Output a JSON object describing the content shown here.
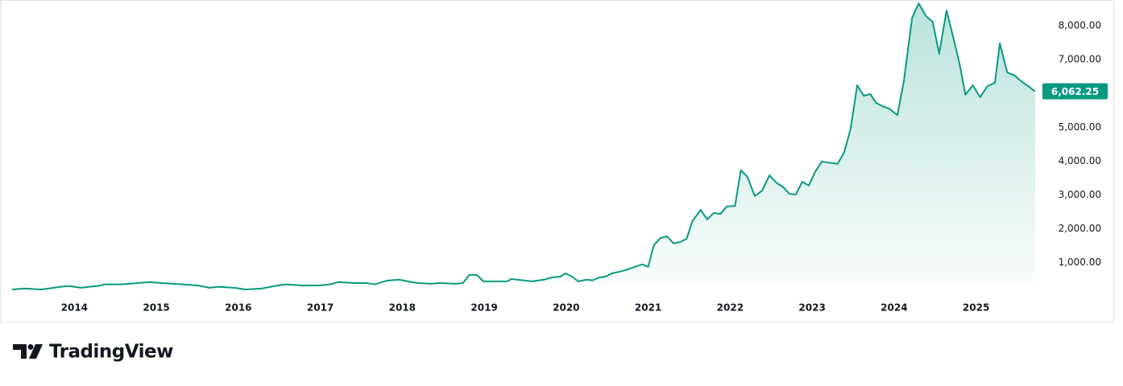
{
  "chart_data": {
    "type": "area",
    "color": "#089981",
    "x": [
      2013.24,
      2013.39,
      2013.59,
      2013.69,
      2013.83,
      2013.93,
      2014.0,
      2014.08,
      2014.18,
      2014.28,
      2014.37,
      2014.57,
      2014.67,
      2014.77,
      2014.91,
      2015.06,
      2015.21,
      2015.31,
      2015.5,
      2015.65,
      2015.75,
      2015.95,
      2016.09,
      2016.29,
      2016.44,
      2016.58,
      2016.78,
      2016.98,
      2017.12,
      2017.22,
      2017.42,
      2017.57,
      2017.66,
      2017.81,
      2017.96,
      2018.11,
      2018.2,
      2018.35,
      2018.45,
      2018.65,
      2018.74,
      2018.82,
      2018.91,
      2018.99,
      2019.14,
      2019.28,
      2019.33,
      2019.48,
      2019.58,
      2019.73,
      2019.83,
      2019.93,
      2019.99,
      2020.07,
      2020.15,
      2020.25,
      2020.32,
      2020.41,
      2020.48,
      2020.56,
      2020.66,
      2020.76,
      2020.86,
      2020.93,
      2021.0,
      2021.07,
      2021.15,
      2021.23,
      2021.31,
      2021.39,
      2021.47,
      2021.54,
      2021.64,
      2021.72,
      2021.8,
      2021.88,
      2021.96,
      2022.06,
      2022.13,
      2022.21,
      2022.3,
      2022.39,
      2022.48,
      2022.57,
      2022.64,
      2022.72,
      2022.8,
      2022.88,
      2022.96,
      2023.04,
      2023.12,
      2023.19,
      2023.31,
      2023.39,
      2023.47,
      2023.55,
      2023.63,
      2023.71,
      2023.78,
      2023.86,
      2023.94,
      2024.04,
      2024.12,
      2024.22,
      2024.3,
      2024.39,
      2024.47,
      2024.55,
      2024.64,
      2024.72,
      2024.8,
      2024.87,
      2024.96,
      2025.05,
      2025.14,
      2025.23,
      2025.29,
      2025.38,
      2025.47,
      2025.55,
      2025.65,
      2025.72
    ],
    "values": [
      210,
      240,
      210,
      240,
      290,
      310,
      290,
      260,
      290,
      310,
      360,
      360,
      380,
      400,
      430,
      400,
      380,
      360,
      330,
      260,
      290,
      260,
      210,
      240,
      310,
      360,
      330,
      330,
      360,
      430,
      400,
      400,
      360,
      470,
      500,
      430,
      400,
      380,
      400,
      380,
      400,
      640,
      640,
      450,
      450,
      450,
      520,
      480,
      450,
      500,
      570,
      590,
      690,
      590,
      450,
      500,
      480,
      570,
      590,
      690,
      740,
      810,
      900,
      950,
      880,
      1520,
      1730,
      1780,
      1570,
      1610,
      1710,
      2230,
      2560,
      2280,
      2470,
      2440,
      2660,
      2680,
      3730,
      3540,
      2970,
      3130,
      3580,
      3350,
      3250,
      3040,
      3010,
      3390,
      3280,
      3700,
      3990,
      3960,
      3920,
      4250,
      4960,
      6240,
      5930,
      5980,
      5720,
      5620,
      5550,
      5360,
      6380,
      8230,
      8660,
      8280,
      8120,
      7170,
      8450,
      7670,
      6860,
      5960,
      6240,
      5890,
      6220,
      6310,
      7480,
      6620,
      6530,
      6360,
      6190,
      6062.25
    ],
    "last_value_label": "6,062.25",
    "xlim": [
      2013.24,
      2025.8
    ],
    "xticks": [
      2014,
      2015,
      2016,
      2017,
      2018,
      2019,
      2020,
      2021,
      2022,
      2023,
      2024,
      2025
    ],
    "ylim": [
      400,
      8710
    ],
    "yticks": [
      {
        "value": 1000,
        "label": "1,000.00"
      },
      {
        "value": 2000,
        "label": "2,000.00"
      },
      {
        "value": 3000,
        "label": "3,000.00"
      },
      {
        "value": 4000,
        "label": "4,000.00"
      },
      {
        "value": 5000,
        "label": "5,000.00"
      },
      {
        "value": 6000,
        "label": "6,000.00"
      },
      {
        "value": 7000,
        "label": "7,000.00"
      },
      {
        "value": 8000,
        "label": "8,000.00"
      }
    ],
    "grid": false
  },
  "footer": {
    "brand": "TradingView"
  }
}
